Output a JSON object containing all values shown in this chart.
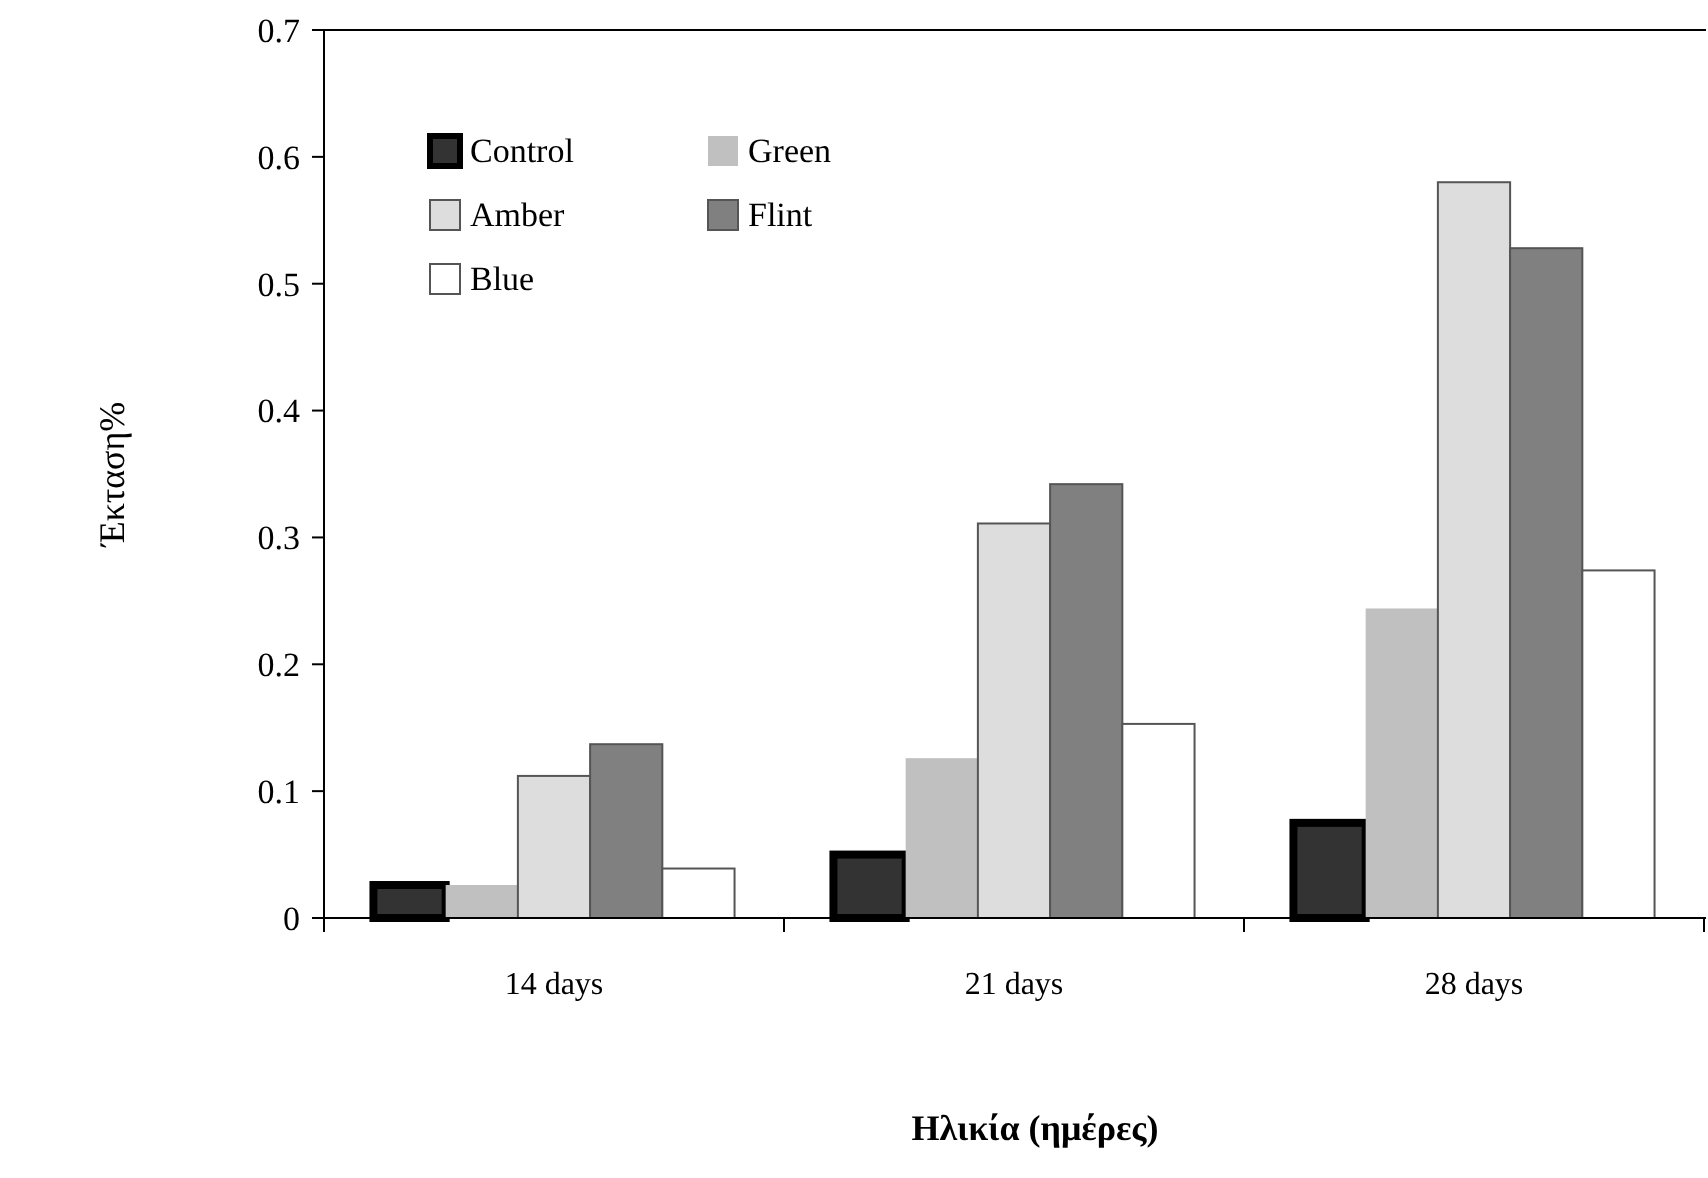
{
  "chart_data": {
    "type": "bar",
    "ylabel": "Έκταση%",
    "xlabel": "Ηλικία (ημέρες)",
    "categories": [
      "14 days",
      "21 days",
      "28 days"
    ],
    "series": [
      {
        "name": "Control",
        "color": "#333333",
        "values": [
          0.026,
          0.05,
          0.075
        ]
      },
      {
        "name": "Green",
        "color": "#c0c0c0",
        "values": [
          0.026,
          0.126,
          0.244
        ]
      },
      {
        "name": "Amber",
        "color": "#dddddd",
        "values": [
          0.112,
          0.311,
          0.58
        ]
      },
      {
        "name": "Flint",
        "color": "#808080",
        "values": [
          0.137,
          0.342,
          0.528
        ]
      },
      {
        "name": "Blue",
        "color": "#ffffff",
        "values": [
          0.039,
          0.153,
          0.274
        ]
      }
    ],
    "ylim": [
      0,
      0.7
    ],
    "yticks": [
      0,
      0.1,
      0.2,
      0.3,
      0.4,
      0.5,
      0.6,
      0.7
    ],
    "legend": "top left",
    "grid": false
  }
}
